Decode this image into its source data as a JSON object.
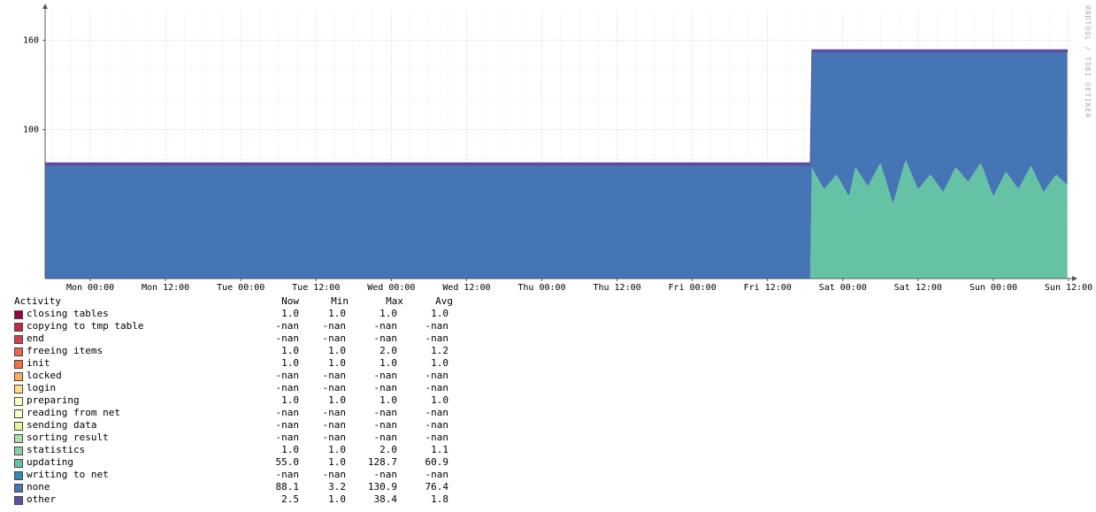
{
  "watermark": "RRDTOOL / TOBI OETIKER",
  "chart_data": {
    "type": "area",
    "stacked": true,
    "title": "",
    "xlabel": "",
    "ylabel": "",
    "ylim": [
      0,
      180
    ],
    "yticks": [
      100,
      160
    ],
    "xticks": [
      "Mon 00:00",
      "Mon 12:00",
      "Tue 00:00",
      "Tue 12:00",
      "Wed 00:00",
      "Wed 12:00",
      "Thu 00:00",
      "Thu 12:00",
      "Fri 00:00",
      "Fri 12:00",
      "Sat 00:00",
      "Sat 12:00",
      "Sun 00:00",
      "Sun 12:00"
    ],
    "x_hours": [
      0,
      12,
      24,
      36,
      48,
      60,
      72,
      84,
      96,
      108,
      120,
      132,
      144,
      156
    ],
    "x_range_hours": [
      -7.2,
      156
    ],
    "grid": true,
    "series": [
      {
        "name": "updating",
        "color": "#66c2a5",
        "x_hours": [
          -7.2,
          114.9,
          115,
          117,
          119,
          121,
          122,
          124,
          126,
          128,
          130,
          132,
          134,
          136,
          138,
          140,
          142,
          144,
          146,
          148,
          150,
          152,
          154,
          156
        ],
        "values": [
          0,
          0,
          75,
          60,
          70,
          55,
          75,
          62,
          78,
          50,
          80,
          60,
          70,
          58,
          75,
          65,
          78,
          55,
          72,
          60,
          76,
          58,
          70,
          62
        ]
      },
      {
        "name": "none",
        "color": "#4575b4",
        "x_hours": [
          -7.2,
          114.9,
          115,
          117,
          119,
          121,
          122,
          124,
          126,
          128,
          130,
          132,
          134,
          136,
          138,
          140,
          142,
          144,
          146,
          148,
          150,
          152,
          154,
          156
        ],
        "values": [
          76,
          76,
          77,
          92,
          82,
          97,
          77,
          90,
          74,
          102,
          72,
          92,
          82,
          94,
          77,
          87,
          74,
          97,
          80,
          92,
          76,
          94,
          82,
          90
        ]
      },
      {
        "name": "other",
        "color": "#5e4fa2",
        "x_hours": [
          -7.2,
          156
        ],
        "values": [
          1.8,
          1.8
        ]
      }
    ]
  },
  "legend": {
    "headers": [
      "Activity",
      "Now",
      "Min",
      "Max",
      "Avg"
    ],
    "rows": [
      {
        "name": "closing tables",
        "color": "#9e0142",
        "now": "1.0",
        "min": "1.0",
        "max": "1.0",
        "avg": "1.0"
      },
      {
        "name": "copying to tmp table",
        "color": "#c2294a",
        "now": "-nan",
        "min": "-nan",
        "max": "-nan",
        "avg": "-nan"
      },
      {
        "name": "end",
        "color": "#d53e4f",
        "now": "-nan",
        "min": "-nan",
        "max": "-nan",
        "avg": "-nan"
      },
      {
        "name": "freeing items",
        "color": "#e8694c",
        "now": "1.0",
        "min": "1.0",
        "max": "2.0",
        "avg": "1.2"
      },
      {
        "name": "init",
        "color": "#f46d43",
        "now": "1.0",
        "min": "1.0",
        "max": "1.0",
        "avg": "1.0"
      },
      {
        "name": "locked",
        "color": "#fdae61",
        "now": "-nan",
        "min": "-nan",
        "max": "-nan",
        "avg": "-nan"
      },
      {
        "name": "login",
        "color": "#fee08b",
        "now": "-nan",
        "min": "-nan",
        "max": "-nan",
        "avg": "-nan"
      },
      {
        "name": "preparing",
        "color": "#ffffbf",
        "now": "1.0",
        "min": "1.0",
        "max": "1.0",
        "avg": "1.0"
      },
      {
        "name": "reading from net",
        "color": "#fefec0",
        "now": "-nan",
        "min": "-nan",
        "max": "-nan",
        "avg": "-nan"
      },
      {
        "name": "sending data",
        "color": "#e6f598",
        "now": "-nan",
        "min": "-nan",
        "max": "-nan",
        "avg": "-nan"
      },
      {
        "name": "sorting result",
        "color": "#abdda4",
        "now": "-nan",
        "min": "-nan",
        "max": "-nan",
        "avg": "-nan"
      },
      {
        "name": "statistics",
        "color": "#89d0a4",
        "now": "1.0",
        "min": "1.0",
        "max": "2.0",
        "avg": "1.1"
      },
      {
        "name": "updating",
        "color": "#66c2a5",
        "now": "55.0",
        "min": "1.0",
        "max": "128.7",
        "avg": "60.9"
      },
      {
        "name": "writing to net",
        "color": "#3288bd",
        "now": "-nan",
        "min": "-nan",
        "max": "-nan",
        "avg": "-nan"
      },
      {
        "name": "none",
        "color": "#4575b4",
        "now": "88.1",
        "min": "3.2",
        "max": "130.9",
        "avg": "76.4"
      },
      {
        "name": "other",
        "color": "#5e4fa2",
        "now": "2.5",
        "min": "1.0",
        "max": "38.4",
        "avg": "1.8"
      }
    ]
  }
}
